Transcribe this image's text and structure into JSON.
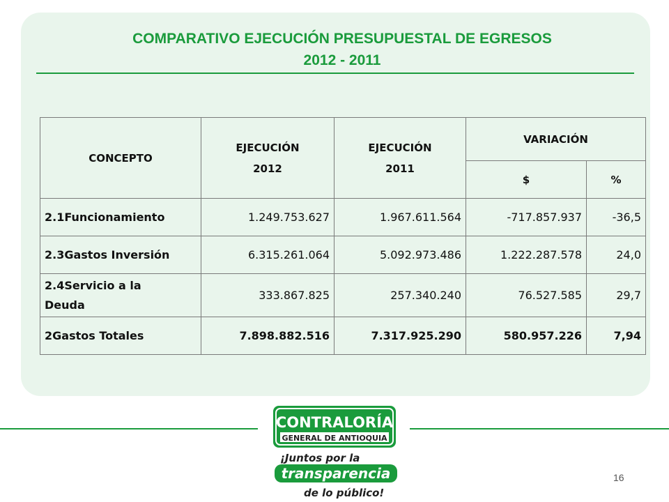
{
  "slide": {
    "title_line1": "COMPARATIVO EJECUCIÓN PRESUPUESTAL DE EGRESOS",
    "title_line2": "2012 - 2011",
    "page_number": "16"
  },
  "table": {
    "headers": {
      "concepto": "CONCEPTO",
      "ejecucion_2012": "EJECUCIÓN 2012",
      "ejecucion_2011": "EJECUCIÓN 2011",
      "variacion": "VARIACIÓN",
      "var_pesos": "$",
      "var_pct": "%"
    },
    "rows": [
      {
        "concepto": "2.1Funcionamiento",
        "e2012": "1.249.753.627",
        "e2011": "1.967.611.564",
        "var": "-717.857.937",
        "pct": "-36,5"
      },
      {
        "concepto": "2.3Gastos Inversión",
        "e2012": "6.315.261.064",
        "e2011": "5.092.973.486",
        "var": "1.222.287.578",
        "pct": "24,0"
      },
      {
        "concepto": "2.4Servicio a la Deuda",
        "e2012": "333.867.825",
        "e2011": "257.340.240",
        "var": "76.527.585",
        "pct": "29,7"
      },
      {
        "concepto": "2Gastos Totales",
        "e2012": "7.898.882.516",
        "e2011": "7.317.925.290",
        "var": "580.957.226",
        "pct": "7,94"
      }
    ]
  },
  "logo": {
    "line1": "CONTRALORÍA",
    "line2": "GENERAL DE ANTIOQUIA",
    "line3": "¡Juntos por la",
    "line4": "transparencia",
    "line5": "de lo público!",
    "colors": {
      "green": "#1a9b3c",
      "dark": "#1f1f1f"
    }
  }
}
